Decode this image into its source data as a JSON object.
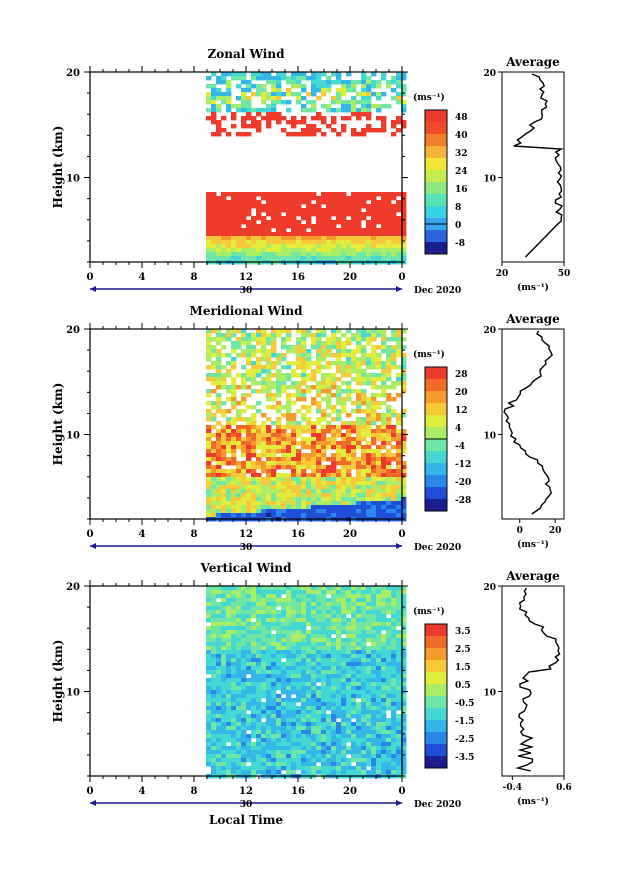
{
  "colorscale": [
    "#1b1e8c",
    "#1f4fd6",
    "#2b86ea",
    "#35b6e8",
    "#43d8d3",
    "#6fe6a4",
    "#a9ec66",
    "#e2ec3a",
    "#f7c83a",
    "#f59a2c",
    "#f26a2a",
    "#ef3b2c"
  ],
  "colorscale_zonal": [
    "#1b1e8c",
    "#2f64e0",
    "#38a6ee",
    "#3bd3e4",
    "#58e3b7",
    "#8de87e",
    "#c7ec4d",
    "#f4e53a",
    "#f6b33a",
    "#f27f2c",
    "#ef4c2c",
    "#ef3b2c"
  ],
  "common": {
    "date_label": "Dec 2020",
    "day_label": "30",
    "x_ticks": [
      "0",
      "4",
      "8",
      "12",
      "16",
      "20",
      "0"
    ],
    "xlabel": "Local Time",
    "ylabel": "Height (km)",
    "unit_label": "(ms⁻¹)",
    "avg_unit_label": "(ms⁻¹)",
    "avg_title": "Average"
  },
  "chart_data": [
    {
      "type": "heatmap",
      "title": "Zonal Wind",
      "xlabel": "",
      "ylabel": "Height (km)",
      "xlim": [
        0,
        24
      ],
      "ylim": [
        2,
        20
      ],
      "y_ticks": [
        "20",
        "10"
      ],
      "colorbar": {
        "ticks": [
          "48",
          "40",
          "32",
          "24",
          "16",
          "8",
          "0",
          "-8"
        ]
      },
      "avg_profile": {
        "xlim": [
          20,
          50
        ],
        "x_ticks": [
          "20",
          "50"
        ],
        "y_ticks": [
          "20",
          "10"
        ]
      }
    },
    {
      "type": "heatmap",
      "title": "Meridional Wind",
      "xlabel": "",
      "ylabel": "Height (km)",
      "xlim": [
        0,
        24
      ],
      "ylim": [
        2,
        20
      ],
      "y_ticks": [
        "20",
        "10"
      ],
      "colorbar": {
        "ticks": [
          "28",
          "20",
          "12",
          "4",
          "-4",
          "-12",
          "-20",
          "-28"
        ]
      },
      "avg_profile": {
        "xlim": [
          -10,
          25
        ],
        "x_ticks": [
          "0",
          "20"
        ],
        "y_ticks": [
          "20",
          "10"
        ]
      }
    },
    {
      "type": "heatmap",
      "title": "Vertical Wind",
      "xlabel": "Local Time",
      "ylabel": "Height (km)",
      "xlim": [
        0,
        24
      ],
      "ylim": [
        2,
        20
      ],
      "y_ticks": [
        "20",
        "10"
      ],
      "colorbar": {
        "ticks": [
          "3.5",
          "2.5",
          "1.5",
          "0.5",
          "-0.5",
          "-1.5",
          "-2.5",
          "-3.5"
        ]
      },
      "avg_profile": {
        "xlim": [
          -0.6,
          0.6
        ],
        "x_ticks": [
          "-0.4",
          "0.6"
        ],
        "y_ticks": [
          "20",
          "10"
        ]
      }
    }
  ]
}
